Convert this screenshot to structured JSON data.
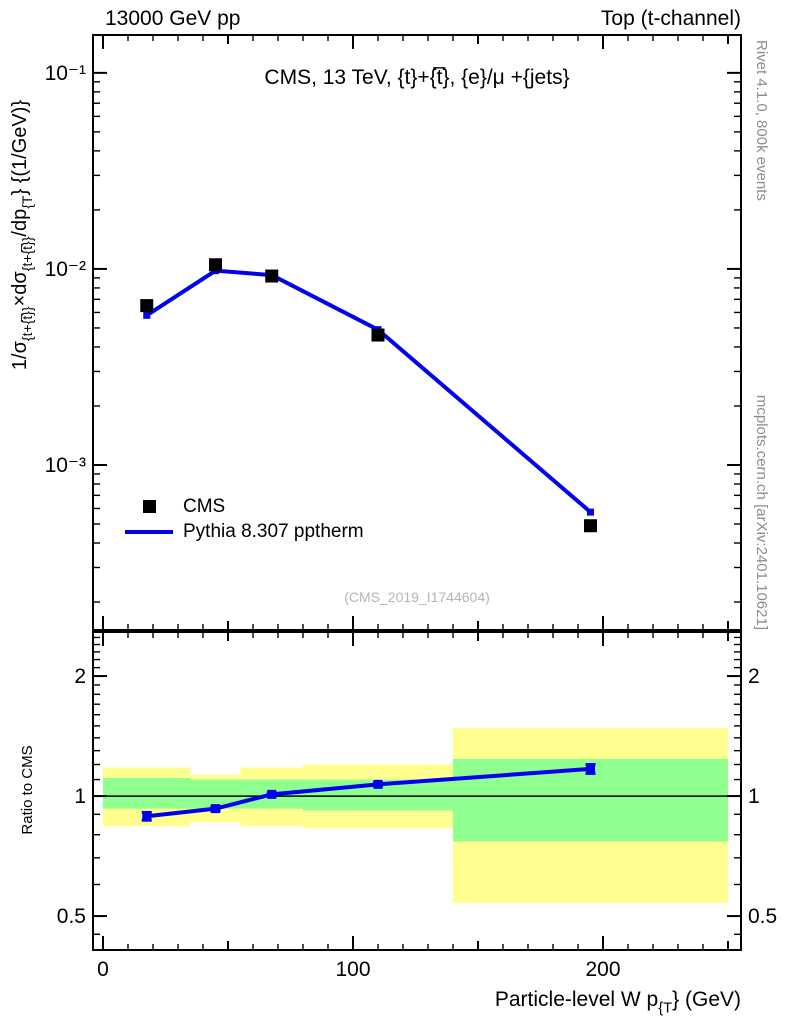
{
  "header": {
    "left": "13000 GeV pp",
    "right": "Top (t-channel)"
  },
  "title": "CMS, 13 TeV, {t}+{t̅}, {e}/μ +{jets}",
  "watermark": "(CMS_2019_I1744604)",
  "side_notes": {
    "top_right": "Rivet 4.1.0,  800k events",
    "bottom_right": "mcplots.cern.ch [arXiv:2401.10621]"
  },
  "legend": {
    "entries": [
      {
        "marker": "black-square",
        "label": "CMS"
      },
      {
        "marker": "blue-line",
        "label": "Pythia 8.307 pptherm"
      }
    ]
  },
  "colors": {
    "line": "#0000ee",
    "band_outer": "#ffff8f",
    "band_inner": "#8fff8f",
    "marker": "#000000",
    "frame": "#000000",
    "gray_text": "#8c8c8c",
    "watermark": "#b5b5b5"
  },
  "chart_data": {
    "type": "line",
    "title": "CMS, 13 TeV, {t}+{t̅}, {e}/μ +{jets}",
    "xlabel_segments": [
      {
        "t": "Particle-level W p"
      },
      {
        "t": "{T",
        "sub": true
      },
      {
        "t": "} (GeV)"
      }
    ],
    "ylabel_segments": [
      {
        "t": "1/σ"
      },
      {
        "t": "{t+{t̅}}",
        "sub": true
      },
      {
        "t": "×dσ"
      },
      {
        "t": "{t+{t̅}}",
        "sub": true
      },
      {
        "t": "/dp"
      },
      {
        "t": "{T",
        "sub": true
      },
      {
        "t": "}  {(1/GeV)}"
      }
    ],
    "ratio_ylabel": "Ratio to CMS",
    "x_range": [
      -4,
      255.2
    ],
    "x_ticks": {
      "min": 0,
      "max": 250,
      "minor_step": 10,
      "mid_every": 50,
      "major_every": 100,
      "labels": [
        {
          "v": 0,
          "t": "0"
        },
        {
          "v": 100,
          "t": "100"
        },
        {
          "v": 200,
          "t": "200"
        }
      ]
    },
    "y_main": {
      "scale": "log",
      "range_top": 0.156,
      "range_bottom": 0.000144,
      "major_ticks": [
        {
          "v": 0.1,
          "t": "10⁻¹"
        },
        {
          "v": 0.01,
          "t": "10⁻²"
        },
        {
          "v": 0.001,
          "t": "10⁻³"
        }
      ]
    },
    "y_ratio": {
      "scale": "log",
      "range_top": 2.58,
      "range_bottom": 0.411,
      "major_ticks": [
        {
          "v": 2,
          "t": "2"
        },
        {
          "v": 1,
          "t": "1"
        },
        {
          "v": 0.5,
          "t": "0.5"
        }
      ],
      "minor_ticks": [
        0.45,
        0.5,
        0.6,
        0.7,
        0.8,
        0.9,
        1.0,
        1.1,
        1.2,
        1.3,
        1.4,
        1.5,
        1.6,
        1.7,
        1.8,
        1.9,
        2.0,
        2.1,
        2.2,
        2.3,
        2.4,
        2.5
      ],
      "unity": 1
    },
    "bin_edges": [
      0,
      35,
      55,
      80,
      140,
      250
    ],
    "x": [
      17.5,
      45,
      67.5,
      110,
      195
    ],
    "series": [
      {
        "name": "CMS",
        "type": "scatter",
        "marker": "black-square",
        "values": [
          0.0065,
          0.0105,
          0.0092,
          0.0046,
          0.00049
        ]
      },
      {
        "name": "Pythia 8.307 pptherm",
        "type": "line",
        "color": "#0000ee",
        "values": [
          0.0058,
          0.0098,
          0.0093,
          0.0049,
          0.000575
        ]
      }
    ],
    "ratio": {
      "name": "Pythia 8.307 pptherm / CMS",
      "values": [
        0.89,
        0.93,
        1.01,
        1.07,
        1.17
      ],
      "errors": [
        0.02,
        0.012,
        0.008,
        0.01,
        0.03
      ],
      "bands": [
        {
          "x0": 0,
          "x1": 35,
          "outer": [
            0.84,
            1.18
          ],
          "inner": [
            0.93,
            1.11
          ]
        },
        {
          "x0": 35,
          "x1": 55,
          "outer": [
            0.86,
            1.13
          ],
          "inner": [
            0.93,
            1.1
          ]
        },
        {
          "x0": 55,
          "x1": 80,
          "outer": [
            0.84,
            1.18
          ],
          "inner": [
            0.93,
            1.1
          ]
        },
        {
          "x0": 80,
          "x1": 140,
          "outer": [
            0.83,
            1.2
          ],
          "inner": [
            0.92,
            1.1
          ]
        },
        {
          "x0": 140,
          "x1": 250,
          "outer": [
            0.54,
            1.48
          ],
          "inner": [
            0.77,
            1.24
          ]
        }
      ]
    }
  }
}
